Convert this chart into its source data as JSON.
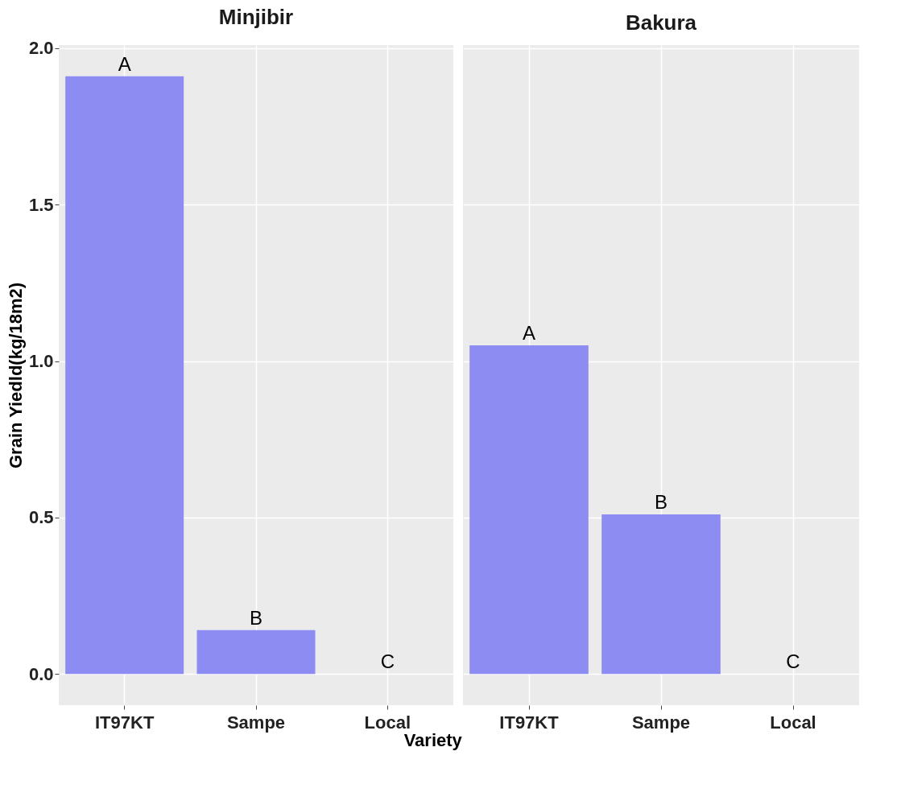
{
  "chart_data": [
    {
      "type": "bar",
      "title": "Minjibir",
      "xlabel": "Variety",
      "ylabel": "Grain Yiedld(kg/18m2)",
      "categories": [
        "IT97KT",
        "Sampe",
        "Local"
      ],
      "values": [
        1.91,
        0.14,
        0
      ],
      "color": "#8c8cf2",
      "ylim": [
        -0.1,
        2.01
      ],
      "yticks": [
        {
          "value": 0,
          "label": "0.0"
        },
        0.5,
        {
          "value": 1,
          "label": "1.0"
        },
        1.5,
        {
          "value": 2,
          "label": "2.0"
        }
      ],
      "grid": true,
      "annotations": [
        {
          "text": "A",
          "x": "IT97KT",
          "y": 1.91
        },
        {
          "text": "B",
          "x": "Sampe",
          "y": 0.14
        },
        {
          "text": "C",
          "x": "Local",
          "y": 0
        }
      ]
    },
    {
      "type": "bar",
      "title": "Bakura",
      "categories": [
        "IT97KT",
        "Sampe",
        "Local"
      ],
      "values": [
        1.05,
        0.51,
        0
      ],
      "color": "#8c8cf2",
      "ylim": [
        -0.1,
        2.01
      ],
      "yticks": [
        0,
        0.5,
        1,
        1.5,
        2
      ],
      "grid": true,
      "tick_labels": "x",
      "annotations": [
        {
          "text": "A",
          "x": "IT97KT",
          "y": 1.05
        },
        {
          "text": "B",
          "x": "Sampe",
          "y": 0.51
        },
        {
          "text": "C",
          "x": "Local",
          "y": 0
        }
      ]
    }
  ]
}
